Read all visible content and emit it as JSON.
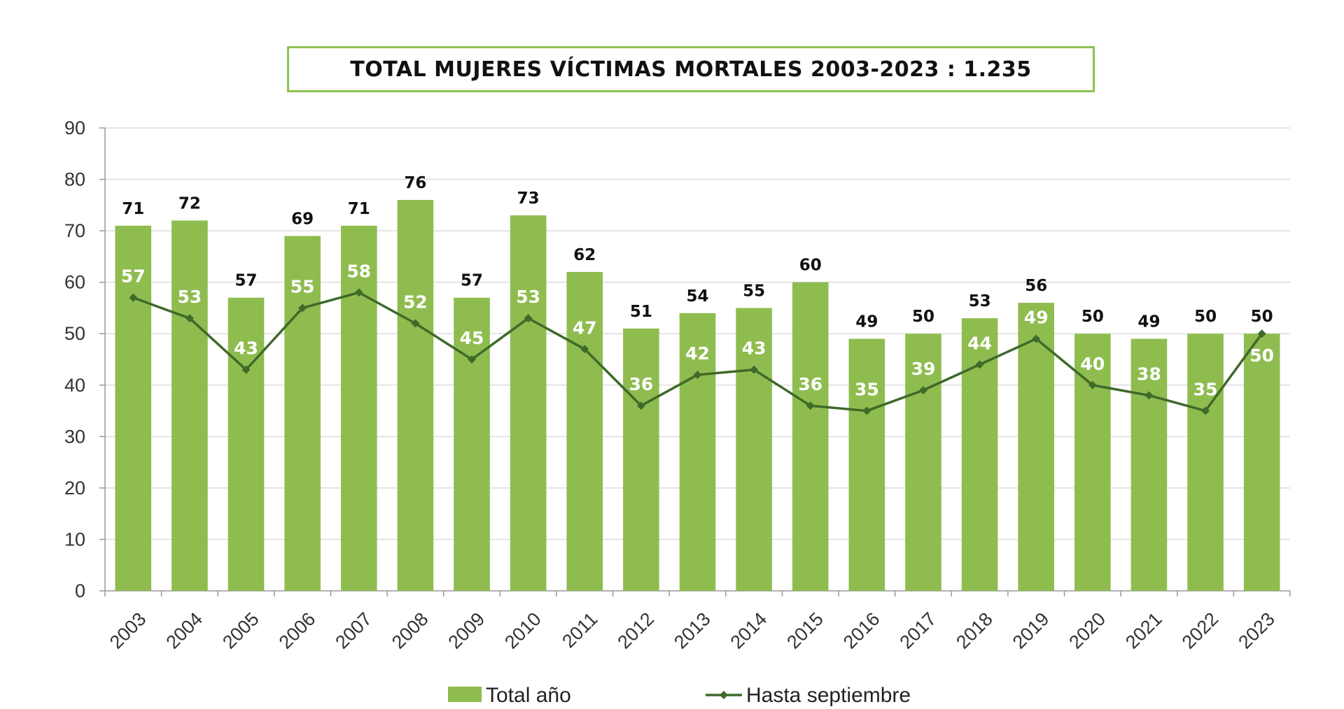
{
  "chart_data": {
    "type": "bar",
    "title": "TOTAL MUJERES VÍCTIMAS MORTALES 2003-2023 : 1.235",
    "categories": [
      "2003",
      "2004",
      "2005",
      "2006",
      "2007",
      "2008",
      "2009",
      "2010",
      "2011",
      "2012",
      "2013",
      "2014",
      "2015",
      "2016",
      "2017",
      "2018",
      "2019",
      "2020",
      "2021",
      "2022",
      "2023"
    ],
    "series": [
      {
        "name": "Total año",
        "kind": "bar",
        "color": "#8fbc4f",
        "values": [
          71,
          72,
          57,
          69,
          71,
          76,
          57,
          73,
          62,
          51,
          54,
          55,
          60,
          49,
          50,
          53,
          56,
          50,
          49,
          50,
          50
        ]
      },
      {
        "name": "Hasta septiembre",
        "kind": "line",
        "color": "#3f6a2a",
        "values": [
          57,
          53,
          43,
          55,
          58,
          52,
          45,
          53,
          47,
          36,
          42,
          43,
          36,
          35,
          39,
          44,
          49,
          40,
          38,
          35,
          50
        ]
      }
    ],
    "ylim": [
      0,
      90
    ],
    "yticks": [
      0,
      10,
      20,
      30,
      40,
      50,
      60,
      70,
      80,
      90
    ],
    "grid": true,
    "legend_position": "bottom",
    "xlabel": "",
    "ylabel": ""
  }
}
